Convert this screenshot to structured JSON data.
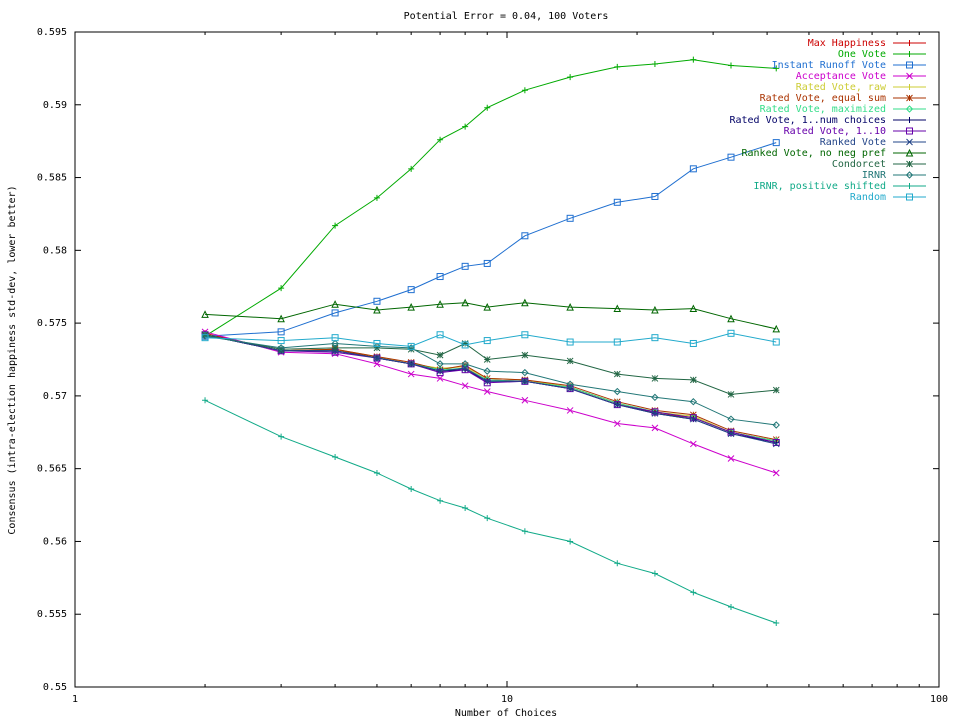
{
  "chart_data": {
    "type": "line",
    "title": "Potential Error = 0.04, 100 Voters",
    "xlabel": "Number of Choices",
    "ylabel": "Consensus (intra-election happiness std-dev, lower better)",
    "xscale": "log",
    "xlim": [
      1,
      100
    ],
    "ylim": [
      0.55,
      0.595
    ],
    "xticks": [
      1,
      10,
      100
    ],
    "xtick_labels": [
      "1",
      "10",
      "100"
    ],
    "yticks": [
      0.55,
      0.555,
      0.56,
      0.565,
      0.57,
      0.575,
      0.58,
      0.585,
      0.59,
      0.595
    ],
    "ytick_labels": [
      "0.55",
      "0.555",
      "0.56",
      "0.565",
      "0.57",
      "0.575",
      "0.58",
      "0.585",
      "0.59",
      "0.595"
    ],
    "grid": false,
    "legend_position": "top-right",
    "x": [
      2,
      3,
      4,
      5,
      6,
      7,
      8,
      9,
      11,
      14,
      18,
      22,
      27,
      33,
      42
    ],
    "series": [
      {
        "name": "Max Happiness",
        "color": "#cc0000",
        "marker": "plus",
        "values": [
          0.5743,
          0.5731,
          0.5732,
          0.5726,
          0.5722,
          0.5717,
          0.5719,
          0.5711,
          0.571,
          0.5706,
          0.5695,
          0.5688,
          0.5685,
          0.5675,
          0.5669
        ]
      },
      {
        "name": "One Vote",
        "color": "#00aa00",
        "marker": "plus",
        "values": [
          0.5741,
          0.5774,
          0.5817,
          0.5836,
          0.5856,
          0.5876,
          0.5885,
          0.5898,
          0.591,
          0.5919,
          0.5926,
          0.5928,
          0.5931,
          0.5927,
          0.5925
        ]
      },
      {
        "name": "Instant Runoff Vote",
        "color": "#1f6fd0",
        "marker": "box",
        "values": [
          0.5741,
          0.5744,
          0.5757,
          0.5765,
          0.5773,
          0.5782,
          0.5789,
          0.5791,
          0.581,
          0.5822,
          0.5833,
          0.5837,
          0.5856,
          0.5864,
          0.5874
        ]
      },
      {
        "name": "Acceptance Vote",
        "color": "#cc00cc",
        "marker": "x",
        "values": [
          0.5744,
          0.573,
          0.5729,
          0.5722,
          0.5715,
          0.5712,
          0.5707,
          0.5703,
          0.5697,
          0.569,
          0.5681,
          0.5678,
          0.5667,
          0.5657,
          0.5647
        ]
      },
      {
        "name": "Rated Vote, raw",
        "color": "#cccc33",
        "marker": "plus",
        "values": [
          0.5742,
          0.5731,
          0.5732,
          0.5727,
          0.5722,
          0.5719,
          0.572,
          0.5712,
          0.5711,
          0.5706,
          0.5695,
          0.5689,
          0.5686,
          0.5675,
          0.5669
        ]
      },
      {
        "name": "Rated Vote, equal sum",
        "color": "#aa3300",
        "marker": "star",
        "values": [
          0.5742,
          0.5731,
          0.5732,
          0.5727,
          0.5723,
          0.5718,
          0.5721,
          0.5712,
          0.5711,
          0.5707,
          0.5696,
          0.569,
          0.5687,
          0.5676,
          0.567
        ]
      },
      {
        "name": "Rated Vote, maximized",
        "color": "#33dd88",
        "marker": "diamond",
        "values": [
          0.5742,
          0.5731,
          0.5731,
          0.5726,
          0.5722,
          0.5718,
          0.5719,
          0.5711,
          0.571,
          0.5706,
          0.5695,
          0.5689,
          0.5685,
          0.5675,
          0.5669
        ]
      },
      {
        "name": "Rated Vote, 1..num choices",
        "color": "#000066",
        "marker": "plus",
        "values": [
          0.5742,
          0.5731,
          0.5731,
          0.5726,
          0.5722,
          0.5717,
          0.5718,
          0.571,
          0.571,
          0.5705,
          0.5694,
          0.5688,
          0.5684,
          0.5674,
          0.5668
        ]
      },
      {
        "name": "Rated Vote, 1..10",
        "color": "#6600aa",
        "marker": "box",
        "values": [
          0.5742,
          0.5731,
          0.573,
          0.5726,
          0.5722,
          0.5716,
          0.5718,
          0.5709,
          0.571,
          0.5705,
          0.5694,
          0.5689,
          0.5685,
          0.5675,
          0.5668
        ]
      },
      {
        "name": "Ranked Vote",
        "color": "#224488",
        "marker": "x",
        "values": [
          0.5742,
          0.5731,
          0.5731,
          0.5726,
          0.5722,
          0.5717,
          0.5719,
          0.571,
          0.571,
          0.5705,
          0.5694,
          0.5688,
          0.5684,
          0.5674,
          0.5667
        ]
      },
      {
        "name": "Ranked Vote, no neg pref",
        "color": "#006600",
        "marker": "triangle",
        "values": [
          0.5756,
          0.5753,
          0.5763,
          0.5759,
          0.5761,
          0.5763,
          0.5764,
          0.5761,
          0.5764,
          0.5761,
          0.576,
          0.5759,
          0.576,
          0.5753,
          0.5746
        ]
      },
      {
        "name": "Condorcet",
        "color": "#226644",
        "marker": "star",
        "values": [
          0.5742,
          0.5732,
          0.5733,
          0.5733,
          0.5732,
          0.5728,
          0.5736,
          0.5725,
          0.5728,
          0.5724,
          0.5715,
          0.5712,
          0.5711,
          0.5701,
          0.5704
        ]
      },
      {
        "name": "IRNR",
        "color": "#227777",
        "marker": "diamond",
        "values": [
          0.5741,
          0.5733,
          0.5736,
          0.5734,
          0.5733,
          0.5722,
          0.5722,
          0.5717,
          0.5716,
          0.5708,
          0.5703,
          0.5699,
          0.5696,
          0.5684,
          0.568
        ]
      },
      {
        "name": "IRNR, positive shifted",
        "color": "#11aa88",
        "marker": "plus",
        "values": [
          0.5697,
          0.5672,
          0.5658,
          0.5647,
          0.5636,
          0.5628,
          0.5623,
          0.5616,
          0.5607,
          0.56,
          0.5585,
          0.5578,
          0.5565,
          0.5555,
          0.5544
        ]
      },
      {
        "name": "Random",
        "color": "#22aacc",
        "marker": "box",
        "values": [
          0.574,
          0.5738,
          0.574,
          0.5736,
          0.5734,
          0.5742,
          0.5735,
          0.5738,
          0.5742,
          0.5737,
          0.5737,
          0.574,
          0.5736,
          0.5743,
          0.5737
        ]
      }
    ]
  }
}
